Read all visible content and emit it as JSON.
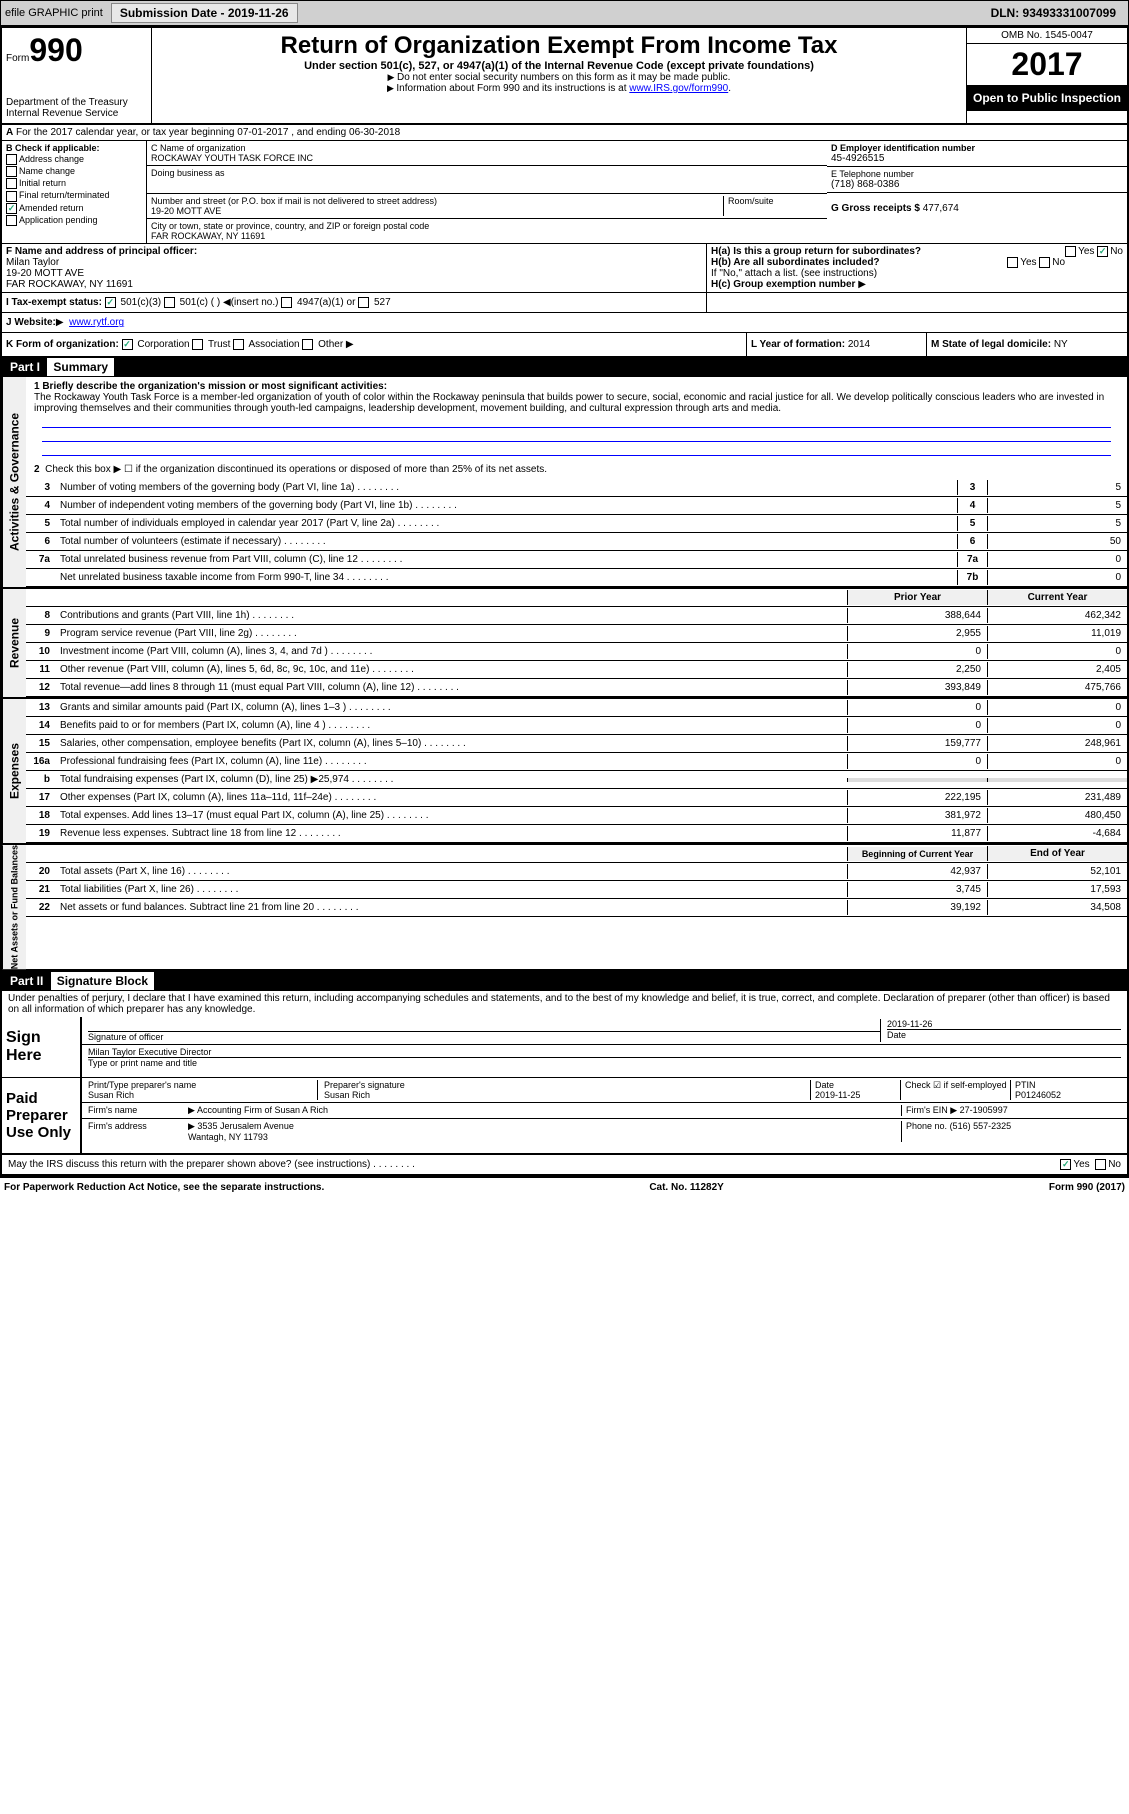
{
  "header": {
    "efile": "efile GRAPHIC print",
    "submission_label": "Submission Date - 2019-11-26",
    "dln": "DLN: 93493331007099"
  },
  "form_id": {
    "form_word": "Form",
    "form_num": "990",
    "dept": "Department of the Treasury",
    "irs": "Internal Revenue Service"
  },
  "title": {
    "main": "Return of Organization Exempt From Income Tax",
    "sub": "Under section 501(c), 527, or 4947(a)(1) of the Internal Revenue Code (except private foundations)",
    "note1": "Do not enter social security numbers on this form as it may be made public.",
    "note2": "Information about Form 990 and its instructions is at",
    "link": "www.IRS.gov/form990"
  },
  "year_box": {
    "omb": "OMB No. 1545-0047",
    "year": "2017",
    "inspection": "Open to Public Inspection"
  },
  "section_a": "For the 2017 calendar year, or tax year beginning 07-01-2017     , and ending 06-30-2018",
  "section_b": {
    "label": "B Check if applicable:",
    "addr": "Address change",
    "name": "Name change",
    "initial": "Initial return",
    "final": "Final return/terminated",
    "amended": "Amended return",
    "pending": "Application pending"
  },
  "section_c": {
    "label": "C Name of organization",
    "name": "ROCKAWAY YOUTH TASK FORCE INC",
    "dba_label": "Doing business as",
    "addr_label": "Number and street (or P.O. box if mail is not delivered to street address)",
    "room_label": "Room/suite",
    "addr": "19-20 MOTT AVE",
    "city_label": "City or town, state or province, country, and ZIP or foreign postal code",
    "city": "FAR ROCKAWAY, NY  11691"
  },
  "section_d": {
    "label": "D Employer identification number",
    "value": "45-4926515"
  },
  "section_e": {
    "label": "E Telephone number",
    "value": "(718) 868-0386"
  },
  "section_g": {
    "label": "G Gross receipts $",
    "value": "477,674"
  },
  "section_f": {
    "label": "F Name and address of principal officer:",
    "name": "Milan Taylor",
    "addr1": "19-20 MOTT AVE",
    "addr2": "FAR ROCKAWAY, NY  11691"
  },
  "section_h": {
    "ha": "H(a)  Is this a group return for subordinates?",
    "hb": "H(b)  Are all subordinates included?",
    "hb_note": "If \"No,\" attach a list. (see instructions)",
    "hc": "H(c)  Group exemption number"
  },
  "section_i": {
    "label": "I  Tax-exempt status:",
    "opt1": "501(c)(3)",
    "opt2": "501(c) (  )",
    "opt2_note": "(insert no.)",
    "opt3": "4947(a)(1) or",
    "opt4": "527"
  },
  "section_j": {
    "label": "J    Website:",
    "value": "www.rytf.org"
  },
  "section_k": {
    "label": "K Form of organization:",
    "corp": "Corporation",
    "trust": "Trust",
    "assoc": "Association",
    "other": "Other"
  },
  "section_l": {
    "label": "L Year of formation:",
    "value": "2014"
  },
  "section_m": {
    "label": "M State of legal domicile:",
    "value": "NY"
  },
  "part1": {
    "header_num": "Part I",
    "header_title": "Summary",
    "vert1": "Activities & Governance",
    "vert2": "Revenue",
    "vert3": "Expenses",
    "vert4": "Net Assets or Fund Balances",
    "line1_label": "1  Briefly describe the organization's mission or most significant activities:",
    "mission": "The Rockaway Youth Task Force is a member-led organization of youth of color within the Rockaway peninsula that builds power to secure, social, economic and racial justice for all. We develop politically conscious leaders who are invested in improving themselves and their communities through youth-led campaigns, leadership development, movement building, and cultural expression through arts and media.",
    "line2": "Check this box ▶ ☐  if the organization discontinued its operations or disposed of more than 25% of its net assets.",
    "lines_gov": [
      {
        "n": "3",
        "t": "Number of voting members of the governing body (Part VI, line 1a)",
        "b": "3",
        "v": "5"
      },
      {
        "n": "4",
        "t": "Number of independent voting members of the governing body (Part VI, line 1b)",
        "b": "4",
        "v": "5"
      },
      {
        "n": "5",
        "t": "Total number of individuals employed in calendar year 2017 (Part V, line 2a)",
        "b": "5",
        "v": "5"
      },
      {
        "n": "6",
        "t": "Total number of volunteers (estimate if necessary)",
        "b": "6",
        "v": "50"
      },
      {
        "n": "7a",
        "t": "Total unrelated business revenue from Part VIII, column (C), line 12",
        "b": "7a",
        "v": "0"
      },
      {
        "n": "",
        "t": "Net unrelated business taxable income from Form 990-T, line 34",
        "b": "7b",
        "v": "0"
      }
    ],
    "col_prior": "Prior Year",
    "col_current": "Current Year",
    "lines_rev": [
      {
        "n": "8",
        "t": "Contributions and grants (Part VIII, line 1h)",
        "p": "388,644",
        "c": "462,342"
      },
      {
        "n": "9",
        "t": "Program service revenue (Part VIII, line 2g)",
        "p": "2,955",
        "c": "11,019"
      },
      {
        "n": "10",
        "t": "Investment income (Part VIII, column (A), lines 3, 4, and 7d )",
        "p": "0",
        "c": "0"
      },
      {
        "n": "11",
        "t": "Other revenue (Part VIII, column (A), lines 5, 6d, 8c, 9c, 10c, and 11e)",
        "p": "2,250",
        "c": "2,405"
      },
      {
        "n": "12",
        "t": "Total revenue—add lines 8 through 11 (must equal Part VIII, column (A), line 12)",
        "p": "393,849",
        "c": "475,766"
      }
    ],
    "lines_exp": [
      {
        "n": "13",
        "t": "Grants and similar amounts paid (Part IX, column (A), lines 1–3 )",
        "p": "0",
        "c": "0"
      },
      {
        "n": "14",
        "t": "Benefits paid to or for members (Part IX, column (A), line 4 )",
        "p": "0",
        "c": "0"
      },
      {
        "n": "15",
        "t": "Salaries, other compensation, employee benefits (Part IX, column (A), lines 5–10)",
        "p": "159,777",
        "c": "248,961"
      },
      {
        "n": "16a",
        "t": "Professional fundraising fees (Part IX, column (A), line 11e)",
        "p": "0",
        "c": "0"
      },
      {
        "n": "b",
        "t": "Total fundraising expenses (Part IX, column (D), line 25) ▶25,974",
        "p": "",
        "c": ""
      },
      {
        "n": "17",
        "t": "Other expenses (Part IX, column (A), lines 11a–11d, 11f–24e)",
        "p": "222,195",
        "c": "231,489"
      },
      {
        "n": "18",
        "t": "Total expenses. Add lines 13–17 (must equal Part IX, column (A), line 25)",
        "p": "381,972",
        "c": "480,450"
      },
      {
        "n": "19",
        "t": "Revenue less expenses. Subtract line 18 from line 12",
        "p": "11,877",
        "c": "-4,684"
      }
    ],
    "col_begin": "Beginning of Current Year",
    "col_end": "End of Year",
    "lines_net": [
      {
        "n": "20",
        "t": "Total assets (Part X, line 16)",
        "p": "42,937",
        "c": "52,101"
      },
      {
        "n": "21",
        "t": "Total liabilities (Part X, line 26)",
        "p": "3,745",
        "c": "17,593"
      },
      {
        "n": "22",
        "t": "Net assets or fund balances. Subtract line 21 from line 20",
        "p": "39,192",
        "c": "34,508"
      }
    ]
  },
  "part2": {
    "header_num": "Part II",
    "header_title": "Signature Block",
    "perjury": "Under penalties of perjury, I declare that I have examined this return, including accompanying schedules and statements, and to the best of my knowledge and belief, it is true, correct, and complete. Declaration of preparer (other than officer) is based on all information of which preparer has any knowledge.",
    "sign_here": "Sign Here",
    "sig_officer": "Signature of officer",
    "sig_date": "2019-11-26",
    "date_label": "Date",
    "officer_name": "Milan Taylor Executive Director",
    "type_name": "Type or print name and title",
    "paid": "Paid Preparer Use Only",
    "prep_name_label": "Print/Type preparer's name",
    "prep_name": "Susan Rich",
    "prep_sig_label": "Preparer's signature",
    "prep_sig": "Susan Rich",
    "prep_date_label": "Date",
    "prep_date": "2019-11-25",
    "check_self": "Check ☑ if self-employed",
    "ptin_label": "PTIN",
    "ptin": "P01246052",
    "firm_name_label": "Firm's name",
    "firm_name": "Accounting Firm of Susan A Rich",
    "firm_ein_label": "Firm's EIN",
    "firm_ein": "27-1905997",
    "firm_addr_label": "Firm's address",
    "firm_addr": "3535 Jerusalem Avenue",
    "firm_city": "Wantagh, NY  11793",
    "phone_label": "Phone no.",
    "phone": "(516) 557-2325",
    "discuss": "May the IRS discuss this return with the preparer shown above? (see instructions)"
  },
  "footer": {
    "paperwork": "For Paperwork Reduction Act Notice, see the separate instructions.",
    "cat": "Cat. No. 11282Y",
    "form": "Form 990 (2017)"
  },
  "yes": "Yes",
  "no": "No"
}
